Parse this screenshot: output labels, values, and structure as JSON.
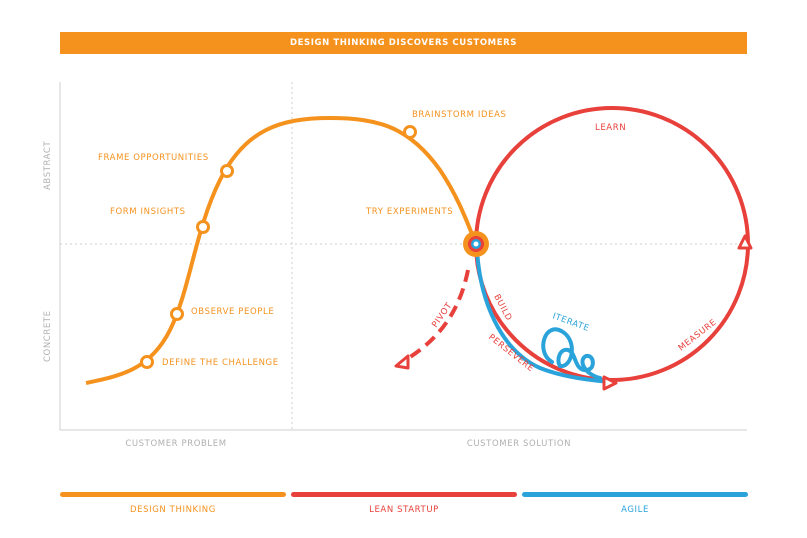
{
  "banner": "DESIGN THINKING DISCOVERS CUSTOMERS",
  "axes": {
    "y_top": "ABSTRACT",
    "y_bottom": "CONCRETE",
    "x_left": "CUSTOMER PROBLEM",
    "x_right": "CUSTOMER SOLUTION"
  },
  "design_thinking_steps": [
    "DEFINE THE CHALLENGE",
    "OBSERVE PEOPLE",
    "FORM INSIGHTS",
    "FRAME OPPORTUNITIES",
    "BRAINSTORM IDEAS",
    "TRY EXPERIMENTS"
  ],
  "lean_labels": {
    "learn": "LEARN",
    "build": "BUILD",
    "measure": "MEASURE",
    "persevere": "PERSEVERE",
    "pivot": "PIVOT"
  },
  "agile_label": "ITERATE",
  "legend": [
    {
      "label": "DESIGN THINKING",
      "color": "#f5921e"
    },
    {
      "label": "LEAN STARTUP",
      "color": "#e8403b"
    },
    {
      "label": "AGILE",
      "color": "#2aa3db"
    }
  ]
}
